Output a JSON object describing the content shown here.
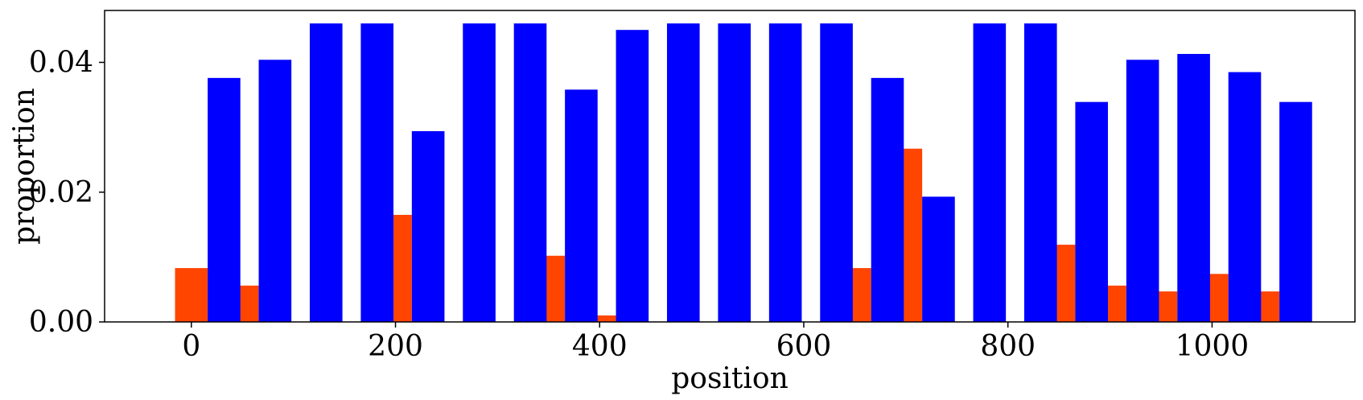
{
  "chart_data": {
    "type": "bar",
    "xlabel": "position",
    "ylabel": "proportion",
    "xlim": [
      -85,
      1140
    ],
    "ylim": [
      0,
      0.048
    ],
    "bar_width": 32,
    "x_ticks": [
      0,
      200,
      400,
      600,
      800,
      1000
    ],
    "x_tick_labels": [
      "0",
      "200",
      "400",
      "600",
      "800",
      "1000"
    ],
    "y_ticks": [
      0,
      0.02,
      0.04
    ],
    "y_tick_labels": [
      "0.00",
      "0.02",
      "0.04"
    ],
    "grid": false,
    "legend": "none",
    "series": [
      {
        "color": "#ff4500",
        "x": [
          0,
          50,
          100,
          150,
          200,
          250,
          300,
          350,
          400,
          450,
          500,
          550,
          600,
          650,
          700,
          750,
          800,
          850,
          900,
          950,
          1000,
          1050
        ],
        "values": [
          0.0083,
          0.0056,
          0,
          0,
          0.0165,
          0,
          0,
          0.0102,
          0.001,
          0,
          0,
          0,
          0,
          0.0083,
          0.0267,
          0,
          0,
          0.0119,
          0.0056,
          0.0047,
          0.0074,
          0.0047
        ]
      },
      {
        "color": "#0000ff",
        "x": [
          32,
          82,
          132,
          182,
          232,
          282,
          332,
          382,
          432,
          482,
          532,
          582,
          632,
          682,
          732,
          782,
          832,
          882,
          932,
          982,
          1032,
          1082
        ],
        "values": [
          0.0376,
          0.0404,
          0.046,
          0.046,
          0.0294,
          0.046,
          0.046,
          0.0358,
          0.045,
          0.046,
          0.046,
          0.046,
          0.046,
          0.0376,
          0.0193,
          0.046,
          0.046,
          0.0339,
          0.0404,
          0.0413,
          0.0385,
          0.0339
        ]
      }
    ]
  }
}
